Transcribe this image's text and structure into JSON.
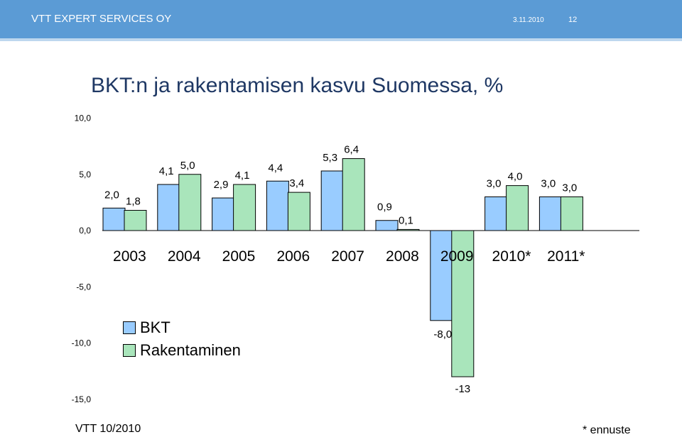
{
  "header": {
    "company": "VTT EXPERT SERVICES OY",
    "date": "3.11.2010",
    "page_number": "12",
    "background_color": "#5b9bd5"
  },
  "footer": {
    "source": "VTT 10/2010",
    "note": "* ennuste"
  },
  "chart_data": {
    "type": "bar",
    "title": "BKT:n ja rakentamisen kasvu Suomessa, %",
    "categories": [
      "2003",
      "2004",
      "2005",
      "2006",
      "2007",
      "2008",
      "2009",
      "2010*",
      "2011*"
    ],
    "series": [
      {
        "name": "BKT",
        "color": "#99ccff",
        "values": [
          2.0,
          4.1,
          2.9,
          4.4,
          5.3,
          0.9,
          -8.0,
          3.0,
          3.0
        ],
        "labels": [
          "2,0",
          "4,1",
          "2,9",
          "4,4",
          "5,3",
          "0,9",
          "-8,0",
          "3,0",
          "3,0"
        ]
      },
      {
        "name": "Rakentaminen",
        "color": "#a9e5bb",
        "values": [
          1.8,
          5.0,
          4.1,
          3.4,
          6.4,
          0.1,
          -13.0,
          4.0,
          3.0
        ],
        "labels": [
          "1,8",
          "5,0",
          "4,1",
          "3,4",
          "6,4",
          "0,1",
          "-13",
          "4,0",
          "3,0"
        ]
      }
    ],
    "yticks": [
      "10,0",
      "5,0",
      "0,0",
      "-5,0",
      "-10,0",
      "-15,0"
    ],
    "ytick_values": [
      10,
      5,
      0,
      -5,
      -10,
      -15
    ],
    "ylim": [
      -15,
      10
    ],
    "grid": false,
    "legend_position": "bottom-left"
  }
}
